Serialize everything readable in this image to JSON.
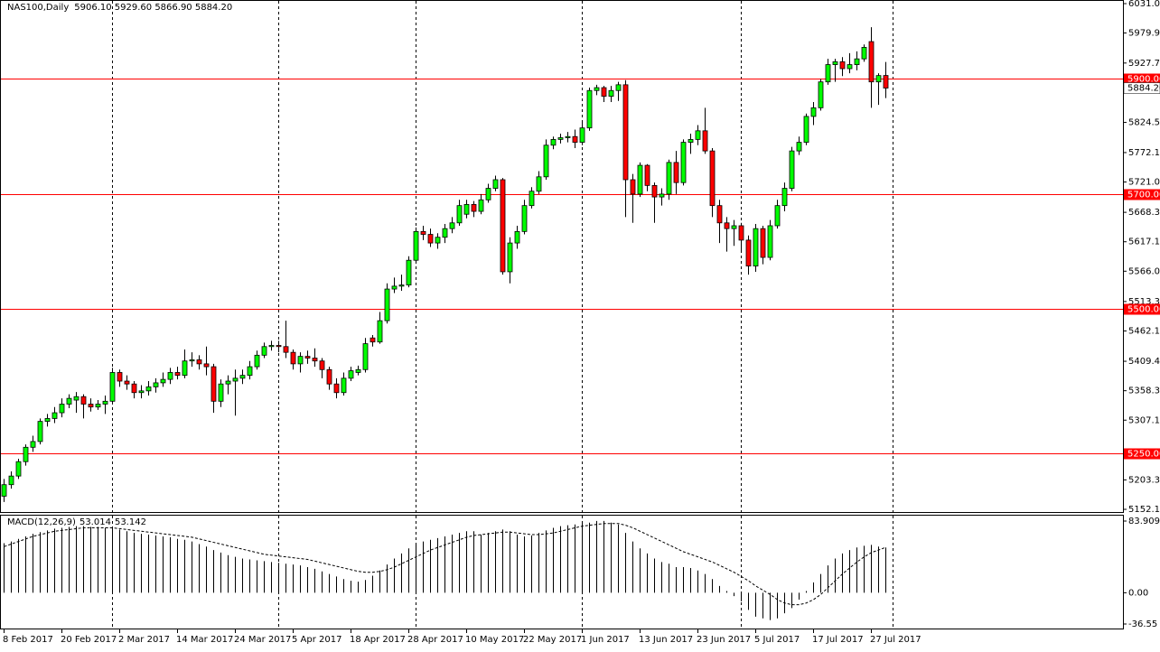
{
  "chart_data": {
    "type": "candlestick",
    "symbol": "NAS100,Daily",
    "header_ohlc": "5906.10 5929.60 5866.90 5884.20",
    "up_color": "#00ff00",
    "down_color": "#ff0000",
    "level_color": "#ff0000",
    "categories": [
      "8 Feb 2017",
      null,
      null,
      null,
      null,
      null,
      null,
      null,
      "20 Feb 2017",
      null,
      null,
      null,
      null,
      null,
      null,
      null,
      "2 Mar 2017",
      null,
      null,
      null,
      null,
      null,
      null,
      null,
      "14 Mar 2017",
      null,
      null,
      null,
      null,
      null,
      null,
      null,
      "24 Mar 2017",
      null,
      null,
      null,
      null,
      null,
      null,
      null,
      "5 Apr 2017",
      null,
      null,
      null,
      null,
      null,
      null,
      null,
      "18 Apr 2017",
      null,
      null,
      null,
      null,
      null,
      null,
      null,
      "28 Apr 2017",
      null,
      null,
      null,
      null,
      null,
      null,
      null,
      "10 May 2017",
      null,
      null,
      null,
      null,
      null,
      null,
      null,
      "22 May 2017",
      null,
      null,
      null,
      null,
      null,
      null,
      null,
      "1 Jun 2017",
      null,
      null,
      null,
      null,
      null,
      null,
      null,
      "13 Jun 2017",
      null,
      null,
      null,
      null,
      null,
      null,
      null,
      "23 Jun 2017",
      null,
      null,
      null,
      null,
      null,
      null,
      null,
      "5 Jul 2017",
      null,
      null,
      null,
      null,
      null,
      null,
      null,
      "17 Jul 2017",
      null,
      null,
      null,
      null,
      null,
      null,
      null,
      "27 Jul 2017",
      null,
      null
    ],
    "open": [
      5175,
      5195,
      5210,
      5235,
      5260,
      5270,
      5305,
      5310,
      5320,
      5335,
      5342,
      5348,
      5335,
      5330,
      5335,
      5340,
      5390,
      5375,
      5370,
      5355,
      5358,
      5365,
      5372,
      5378,
      5390,
      5385,
      5410,
      5412,
      5405,
      5400,
      5340,
      5370,
      5375,
      5380,
      5385,
      5400,
      5420,
      5435,
      5437,
      5435,
      5425,
      5405,
      5418,
      5415,
      5410,
      5395,
      5370,
      5355,
      5380,
      5390,
      5395,
      5450,
      5443,
      5480,
      5535,
      5540,
      5542,
      5585,
      5635,
      5630,
      5615,
      5625,
      5640,
      5650,
      5665,
      5682,
      5670,
      5690,
      5710,
      5725,
      5565,
      5615,
      5635,
      5680,
      5705,
      5730,
      5785,
      5795,
      5798,
      5800,
      5790,
      5815,
      5880,
      5885,
      5870,
      5880,
      5890,
      5725,
      5700,
      5750,
      5715,
      5695,
      5700,
      5755,
      5720,
      5790,
      5795,
      5810,
      5775,
      5680,
      5650,
      5640,
      5645,
      5620,
      5575,
      5640,
      5590,
      5645,
      5680,
      5710,
      5775,
      5790,
      5835,
      5850,
      5895,
      5925,
      5930,
      5918,
      5925,
      5935,
      5965,
      5895,
      5906.1
    ],
    "high": [
      5205,
      5218,
      5240,
      5265,
      5280,
      5310,
      5318,
      5330,
      5345,
      5352,
      5356,
      5352,
      5345,
      5342,
      5350,
      5398,
      5395,
      5385,
      5375,
      5368,
      5375,
      5380,
      5390,
      5398,
      5400,
      5430,
      5425,
      5420,
      5435,
      5405,
      5378,
      5385,
      5395,
      5395,
      5410,
      5428,
      5442,
      5445,
      5445,
      5480,
      5430,
      5425,
      5428,
      5432,
      5415,
      5400,
      5380,
      5390,
      5400,
      5402,
      5450,
      5455,
      5495,
      5545,
      5555,
      5560,
      5592,
      5642,
      5645,
      5640,
      5632,
      5648,
      5660,
      5690,
      5690,
      5688,
      5700,
      5718,
      5732,
      5728,
      5625,
      5645,
      5690,
      5712,
      5740,
      5795,
      5800,
      5805,
      5808,
      5812,
      5825,
      5885,
      5890,
      5888,
      5888,
      5895,
      5898,
      5735,
      5755,
      5752,
      5720,
      5710,
      5760,
      5775,
      5795,
      5805,
      5820,
      5850,
      5780,
      5690,
      5660,
      5655,
      5650,
      5628,
      5648,
      5645,
      5655,
      5690,
      5720,
      5782,
      5800,
      5840,
      5860,
      5900,
      5935,
      5935,
      5938,
      5945,
      5948,
      5960,
      5990,
      5910,
      5929.6
    ],
    "low": [
      5165,
      5188,
      5205,
      5228,
      5252,
      5265,
      5296,
      5302,
      5312,
      5328,
      5320,
      5310,
      5322,
      5325,
      5318,
      5335,
      5365,
      5360,
      5345,
      5345,
      5350,
      5355,
      5365,
      5370,
      5378,
      5380,
      5400,
      5395,
      5385,
      5320,
      5330,
      5352,
      5315,
      5370,
      5378,
      5395,
      5415,
      5428,
      5425,
      5415,
      5395,
      5390,
      5405,
      5400,
      5380,
      5360,
      5345,
      5350,
      5375,
      5385,
      5390,
      5435,
      5440,
      5475,
      5528,
      5532,
      5538,
      5580,
      5620,
      5608,
      5605,
      5615,
      5632,
      5645,
      5658,
      5660,
      5665,
      5685,
      5705,
      5560,
      5545,
      5605,
      5630,
      5675,
      5700,
      5725,
      5778,
      5788,
      5790,
      5780,
      5785,
      5810,
      5872,
      5860,
      5860,
      5862,
      5660,
      5650,
      5695,
      5705,
      5650,
      5680,
      5690,
      5700,
      5715,
      5770,
      5785,
      5770,
      5660,
      5615,
      5600,
      5610,
      5600,
      5560,
      5565,
      5578,
      5585,
      5640,
      5670,
      5705,
      5768,
      5785,
      5820,
      5845,
      5890,
      5895,
      5905,
      5910,
      5915,
      5930,
      5850,
      5855,
      5866.9
    ],
    "close": [
      5195,
      5210,
      5235,
      5260,
      5270,
      5305,
      5310,
      5320,
      5335,
      5345,
      5348,
      5335,
      5330,
      5335,
      5340,
      5390,
      5375,
      5370,
      5355,
      5358,
      5365,
      5372,
      5378,
      5390,
      5385,
      5410,
      5412,
      5405,
      5400,
      5340,
      5370,
      5375,
      5380,
      5385,
      5400,
      5420,
      5435,
      5437,
      5435,
      5425,
      5405,
      5418,
      5415,
      5410,
      5395,
      5370,
      5355,
      5380,
      5393,
      5395,
      5440,
      5443,
      5480,
      5535,
      5540,
      5542,
      5585,
      5635,
      5630,
      5615,
      5625,
      5640,
      5650,
      5680,
      5682,
      5670,
      5690,
      5710,
      5725,
      5565,
      5615,
      5635,
      5680,
      5705,
      5730,
      5785,
      5795,
      5798,
      5800,
      5790,
      5815,
      5880,
      5885,
      5870,
      5880,
      5890,
      5725,
      5700,
      5750,
      5715,
      5695,
      5700,
      5755,
      5720,
      5790,
      5795,
      5810,
      5775,
      5680,
      5650,
      5640,
      5645,
      5620,
      5575,
      5640,
      5590,
      5645,
      5680,
      5710,
      5775,
      5790,
      5835,
      5850,
      5895,
      5925,
      5930,
      5918,
      5925,
      5935,
      5955,
      5895,
      5906,
      5884.2
    ],
    "ylim": [
      5145.9,
      6037.3
    ],
    "yticks": [
      {
        "value": 6031,
        "label": "6031.00"
      },
      {
        "value": 5979.95,
        "label": "5979.95"
      },
      {
        "value": 5927.75,
        "label": "5927.75"
      },
      {
        "value": 5824.55,
        "label": "5824.55"
      },
      {
        "value": 5772.15,
        "label": "5772.15"
      },
      {
        "value": 5721,
        "label": "5721.00"
      },
      {
        "value": 5668.3,
        "label": "5668.30"
      },
      {
        "value": 5617.15,
        "label": "5617.15"
      },
      {
        "value": 5566,
        "label": "5566.00"
      },
      {
        "value": 5513.3,
        "label": "5513.30"
      },
      {
        "value": 5462.15,
        "label": "5462.15"
      },
      {
        "value": 5409.45,
        "label": "5409.45"
      },
      {
        "value": 5358.3,
        "label": "5358.30"
      },
      {
        "value": 5307.15,
        "label": "5307.15"
      },
      {
        "value": 5203.3,
        "label": "5203.30"
      },
      {
        "value": 5152.15,
        "label": "5152.15"
      }
    ],
    "levels": [
      {
        "value": 5900,
        "label": "5900.00"
      },
      {
        "value": 5700,
        "label": "5700.00"
      },
      {
        "value": 5500,
        "label": "5500.00"
      },
      {
        "value": 5250,
        "label": "5250.00"
      }
    ],
    "current_price": {
      "value": 5884.2,
      "label": "5884.20"
    },
    "vgrid": [
      15,
      38,
      57,
      80,
      102,
      123
    ],
    "macd": {
      "label": "MACD(12,26,9)",
      "histogram": [
        58,
        60,
        63,
        66,
        69,
        71,
        73,
        75,
        76,
        77,
        78,
        78,
        77,
        77,
        76,
        76,
        74,
        72,
        70,
        69,
        68,
        67,
        66,
        65,
        63,
        62,
        60,
        57,
        54,
        50,
        47,
        44,
        42,
        40,
        39,
        38,
        37,
        36,
        35,
        34,
        33,
        32,
        30,
        28,
        25,
        22,
        19,
        16,
        14,
        13,
        15,
        20,
        26,
        33,
        40,
        46,
        52,
        57,
        60,
        62,
        64,
        66,
        68,
        70,
        72,
        72,
        68,
        70,
        72,
        74,
        72,
        68,
        66,
        67,
        70,
        73,
        76,
        78,
        79,
        80,
        81,
        82,
        84,
        84,
        82,
        80,
        70,
        60,
        52,
        46,
        40,
        36,
        34,
        30,
        30,
        29,
        26,
        22,
        16,
        8,
        2,
        -4,
        -10,
        -20,
        -28,
        -30,
        -32,
        -30,
        -24,
        -18,
        -8,
        2,
        12,
        22,
        32,
        40,
        46,
        50,
        53,
        55,
        56,
        54,
        53.014
      ],
      "signal": [
        54,
        57,
        60,
        63,
        66,
        68,
        70,
        72,
        73,
        74,
        75,
        76,
        76,
        76,
        76,
        76,
        75,
        74,
        73,
        72,
        71,
        70,
        69,
        68,
        67,
        66,
        65,
        63,
        61,
        59,
        57,
        55,
        53,
        51,
        49,
        47,
        45,
        44,
        43,
        42,
        41,
        40,
        39,
        37,
        35,
        33,
        31,
        29,
        27,
        25,
        24,
        24,
        25,
        27,
        30,
        34,
        38,
        42,
        46,
        50,
        53,
        56,
        59,
        62,
        65,
        67,
        68,
        69,
        70,
        71,
        71,
        70,
        69,
        68,
        68,
        69,
        70,
        72,
        74,
        76,
        78,
        79,
        80,
        81,
        81,
        81,
        79,
        76,
        72,
        68,
        64,
        60,
        56,
        52,
        48,
        45,
        42,
        39,
        36,
        32,
        28,
        24,
        19,
        14,
        8,
        3,
        -2,
        -8,
        -12,
        -14,
        -14,
        -12,
        -8,
        -2,
        6,
        14,
        22,
        29,
        36,
        42,
        47,
        50,
        53.142
      ],
      "ylim": [
        -42.9,
        91.3
      ],
      "yticks": [
        83.909,
        {
          "value": 0,
          "label": "0.00"
        },
        -36.55
      ]
    }
  }
}
